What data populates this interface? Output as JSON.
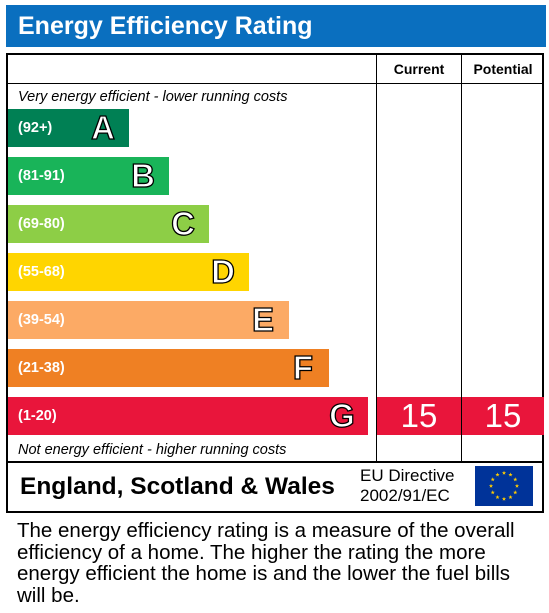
{
  "title": "Energy Efficiency Rating",
  "columns": {
    "current": "Current",
    "potential": "Potential"
  },
  "top_note": "Very energy efficient - lower running costs",
  "bottom_note": "Not energy efficient - higher running costs",
  "chart_data": {
    "type": "bar",
    "title": "Energy Efficiency Rating",
    "categories": [
      "A",
      "B",
      "C",
      "D",
      "E",
      "F",
      "G"
    ],
    "ranges": [
      "(92+)",
      "(81-91)",
      "(69-80)",
      "(55-68)",
      "(39-54)",
      "(21-38)",
      "(1-20)"
    ],
    "colors": [
      "#008054",
      "#19b459",
      "#8dce46",
      "#ffd500",
      "#fcaa65",
      "#ef8023",
      "#e9153b"
    ],
    "current": {
      "rating": 15,
      "band": "G"
    },
    "potential": {
      "rating": 15,
      "band": "G"
    }
  },
  "footer": {
    "region": "England, Scotland & Wales",
    "directive_line1": "EU Directive",
    "directive_line2": "2002/91/EC",
    "flag_icon": "eu-flag-icon",
    "flag_colors": {
      "field": "#003399",
      "stars": "#ffcc00"
    }
  },
  "description": "The energy efficiency rating is a measure of the overall efficiency of a home. The higher the rating the more energy efficient the home is and the lower the fuel bills will be."
}
